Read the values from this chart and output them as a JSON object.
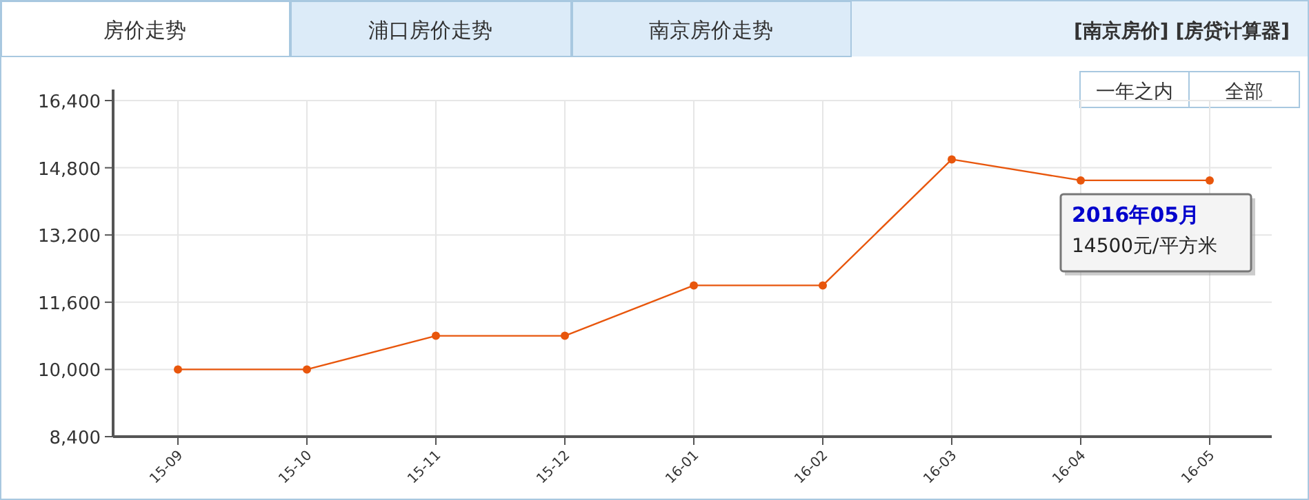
{
  "chart_data": {
    "type": "line",
    "categories": [
      "15-09",
      "15-10",
      "15-11",
      "15-12",
      "16-01",
      "16-02",
      "16-03",
      "16-04",
      "16-05"
    ],
    "series": [
      {
        "color": "#e8560c",
        "values": [
          10000,
          10000,
          10800,
          10800,
          12000,
          12000,
          15000,
          14500,
          14500
        ]
      }
    ],
    "ylim": [
      8400,
      16400
    ],
    "yticks": [
      {
        "value": 8400,
        "label": "8,400"
      },
      {
        "value": 10000,
        "label": "10,000"
      },
      {
        "value": 11600,
        "label": "11,600"
      },
      {
        "value": 13200,
        "label": "13,200"
      },
      {
        "value": 14800,
        "label": "14,800"
      },
      {
        "value": 16400,
        "label": "16,400"
      }
    ],
    "grid": true,
    "marker": "circle",
    "line_style": "solid",
    "annotations": [
      "房价走势",
      "浦口房价走势",
      "南京房价走势",
      "[南京房价]  [房贷计算器]",
      "一年之内",
      "全部",
      {
        "text": "2016年05月",
        "x": "16-05",
        "y": 14500
      },
      {
        "text": "14500元/平方米",
        "x": "16-05",
        "y": 14500
      }
    ]
  }
}
